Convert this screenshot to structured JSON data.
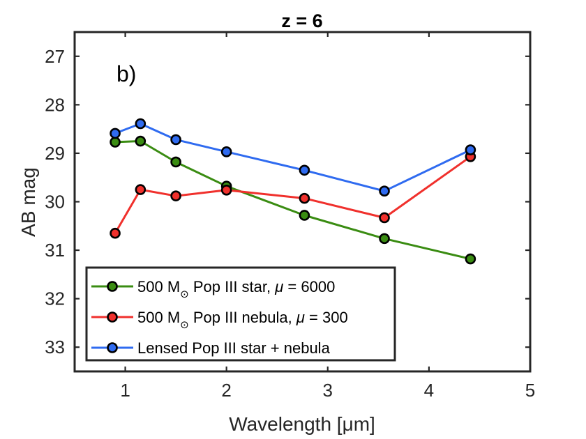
{
  "chart_data": {
    "type": "line",
    "title": "z = 6",
    "panel_label": "b)",
    "xlabel": "Wavelength [μm]",
    "ylabel": "AB mag",
    "xlim": [
      0.5,
      5
    ],
    "ylim": [
      26.5,
      33.5
    ],
    "y_reversed": true,
    "x_ticks": [
      1,
      2,
      3,
      4,
      5
    ],
    "y_ticks": [
      27,
      28,
      29,
      30,
      31,
      32,
      33
    ],
    "x_tick_labels": [
      "1",
      "2",
      "3",
      "4",
      "5"
    ],
    "y_tick_labels": [
      "27",
      "28",
      "29",
      "30",
      "31",
      "32",
      "33"
    ],
    "grid": false,
    "legend_position": "bottom-left",
    "series": [
      {
        "name": "500 M☉ Pop III star, μ = 6000",
        "legend": {
          "pre": "500 M",
          "sub": "⊙",
          "post": " Pop III star, ",
          "greek": "μ",
          "suffix": " = 6000"
        },
        "color": "#3a8c12",
        "x": [
          0.9,
          1.15,
          1.5,
          2.0,
          2.77,
          3.56,
          4.41
        ],
        "y": [
          28.77,
          28.75,
          29.18,
          29.68,
          30.28,
          30.76,
          31.18
        ]
      },
      {
        "name": "500 M☉ Pop III nebula, μ = 300",
        "legend": {
          "pre": "500 M",
          "sub": "⊙",
          "post": " Pop III nebula, ",
          "greek": "μ",
          "suffix": " = 300"
        },
        "color": "#f0302c",
        "x": [
          0.9,
          1.15,
          1.5,
          2.0,
          2.77,
          3.56,
          4.41
        ],
        "y": [
          30.65,
          29.75,
          29.88,
          29.76,
          29.93,
          30.33,
          29.07
        ]
      },
      {
        "name": "Lensed Pop III star + nebula",
        "legend": {
          "pre": "Lensed Pop III star + nebula",
          "sub": "",
          "post": "",
          "greek": "",
          "suffix": ""
        },
        "color": "#2f6bf0",
        "x": [
          0.9,
          1.15,
          1.5,
          2.0,
          2.77,
          3.56,
          4.41
        ],
        "y": [
          28.59,
          28.39,
          28.72,
          28.97,
          29.35,
          29.78,
          28.93
        ]
      }
    ]
  }
}
